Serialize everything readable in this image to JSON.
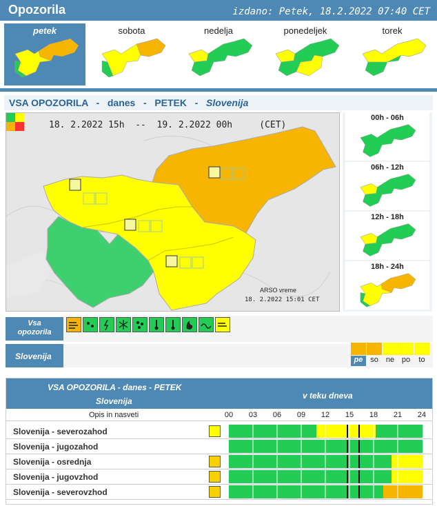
{
  "header": {
    "title": "Opozorila",
    "issued": "izdano: Petek, 18.2.2022 07:40 CET"
  },
  "days": [
    {
      "label": "petek",
      "active": true
    },
    {
      "label": "sobota",
      "active": false
    },
    {
      "label": "nedelja",
      "active": false
    },
    {
      "label": "ponedeljek",
      "active": false
    },
    {
      "label": "torek",
      "active": false
    }
  ],
  "subtitle": {
    "part1": "VSA OPOZORILA   -   danes   -   PETEK   -   ",
    "region": "Slovenija"
  },
  "mainmap": {
    "date_range": "18. 2.2022 15h  --  19. 2.2022 00h     (CET)",
    "credit_line1": "ARSO vreme",
    "credit_line2": "18. 2.2022  15:01 CET"
  },
  "time_panels": [
    {
      "label": "00h - 06h"
    },
    {
      "label": "06h - 12h"
    },
    {
      "label": "12h - 18h"
    },
    {
      "label": "18h - 24h"
    }
  ],
  "iconbar": {
    "label_line1": "Vsa",
    "label_line2": "opozorila"
  },
  "icons": [
    "wind-icon",
    "rain-icon",
    "thunder-icon",
    "snow-icon",
    "fog-icon",
    "high-temp-icon",
    "low-temp-icon",
    "fire-icon",
    "coast-icon",
    "wind-gust-icon"
  ],
  "region_row": {
    "label": "Slovenija",
    "days": [
      "pe",
      "so",
      "ne",
      "po",
      "to"
    ]
  },
  "table": {
    "title": "VSA OPOZORILA - danes - PETEK",
    "region": "Slovenija",
    "during_day": "v teku dneva",
    "desc_header": "Opis in nasveti",
    "hours": [
      "00",
      "03",
      "06",
      "09",
      "12",
      "15",
      "18",
      "21",
      "24"
    ],
    "rows": [
      {
        "name": "Slovenija - severozahod"
      },
      {
        "name": "Slovenija - jugozahod"
      },
      {
        "name": "Slovenija - osrednja"
      },
      {
        "name": "Slovenija - jugovzhod"
      },
      {
        "name": "Slovenija - severovzhod"
      }
    ]
  },
  "colors": {
    "green": "#22cc55",
    "yellow": "#ffff00",
    "orange": "#f7b500",
    "blue": "#4e88b5"
  }
}
